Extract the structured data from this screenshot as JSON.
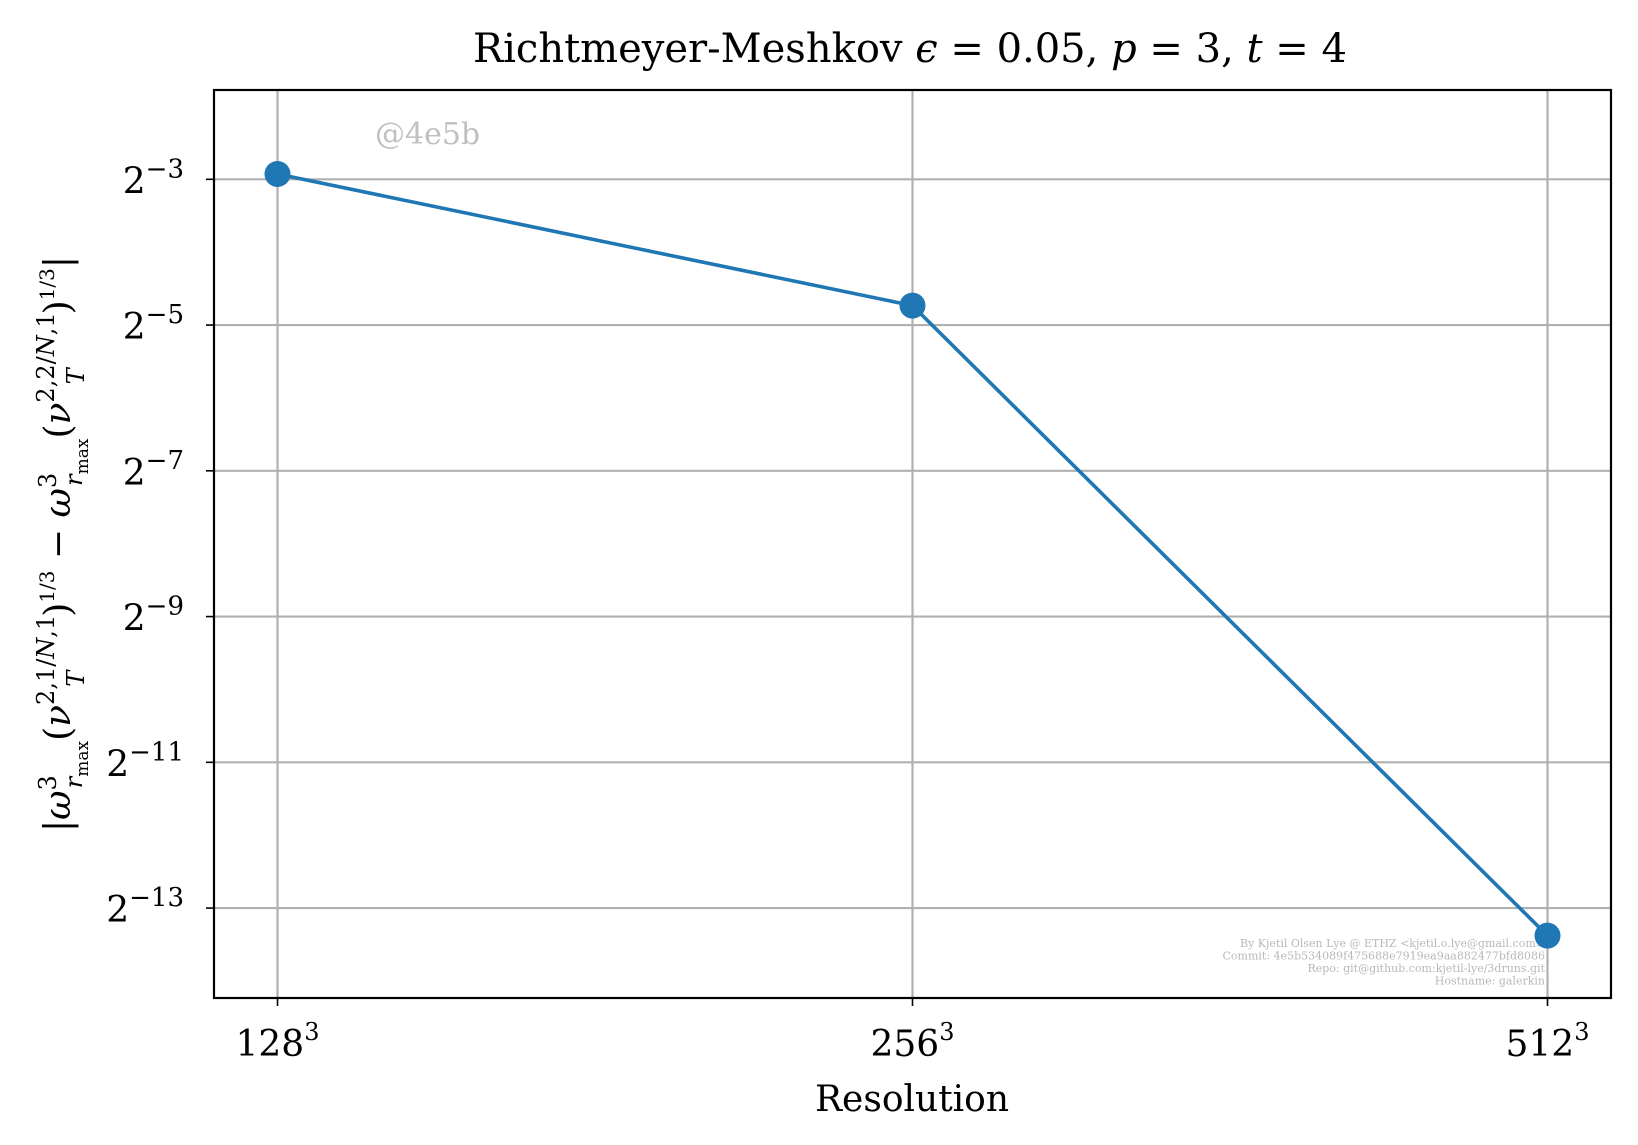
{
  "chart_data": {
    "type": "line",
    "title": "Richtmeyer-Meshkov ϵ = 0.05, p = 3, t = 4",
    "xlabel": "Resolution",
    "ylabel": "|ω³r_max(ν_T^{2,1/N,1})^{1/3} − ω³r_max(ν_T^{2,2/N,1})^{1/3}|",
    "x_scale": "log2",
    "y_scale": "log2",
    "categories": [
      "128³",
      "256³",
      "512³"
    ],
    "x": [
      128,
      256,
      512
    ],
    "series": [
      {
        "values": [
          0.1315,
          0.0376,
          9.39e-05
        ],
        "color": "#1f77b4"
      }
    ],
    "x_ticks": [
      "128³",
      "256³",
      "512³"
    ],
    "y_ticks": [
      {
        "value": 0.125,
        "base": "2",
        "exp": "−3"
      },
      {
        "value": 0.03125,
        "base": "2",
        "exp": "−5"
      },
      {
        "value": 0.0078125,
        "base": "2",
        "exp": "−7"
      },
      {
        "value": 0.001953125,
        "base": "2",
        "exp": "−9"
      },
      {
        "value": 0.00048828125,
        "base": "2",
        "exp": "−11"
      },
      {
        "value": 0.0001220703125,
        "base": "2",
        "exp": "−13"
      }
    ],
    "ylim": [
      5.19e-05,
      0.2923
    ],
    "grid": true,
    "watermark": "@4e5b",
    "footer_lines": [
      "By Kjetil Olsen Lye @ ETHZ <kjetil.o.lye@gmail.com>",
      "Commit: 4e5b534089f475688e7919ea9aa882477bfd8086",
      "Repo: git@github.com:kjetil-lye/3druns.git",
      "Hostname: galerkin"
    ]
  }
}
